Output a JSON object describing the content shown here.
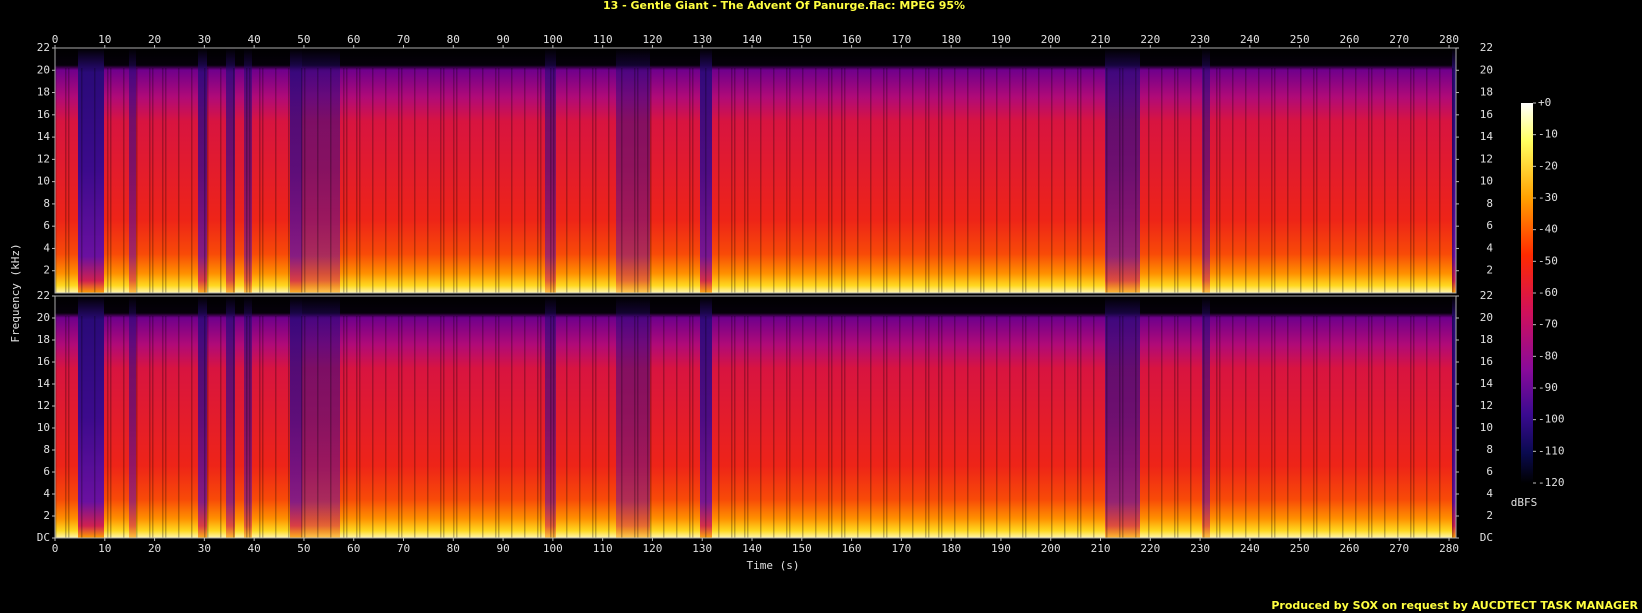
{
  "chart_data": {
    "type": "spectrogram",
    "title": "13 - Gentle Giant - The Advent Of Panurge.flac: MPEG 95%",
    "xlabel": "Time (s)",
    "ylabel": "Frequency (kHz)",
    "xlim": [
      0,
      281.4
    ],
    "xticks": [
      0,
      10,
      20,
      30,
      40,
      50,
      60,
      70,
      80,
      90,
      100,
      110,
      120,
      130,
      140,
      150,
      160,
      170,
      180,
      190,
      200,
      210,
      220,
      230,
      240,
      250,
      260,
      270,
      280
    ],
    "ylim": [
      0,
      22
    ],
    "yticks": [
      {
        "value": 0,
        "label": "DC"
      },
      2,
      4,
      6,
      8,
      10,
      12,
      14,
      16,
      18,
      20,
      22
    ],
    "colorbar": {
      "label": "dBFS",
      "lim": [
        -120,
        0
      ],
      "ticks": [
        {
          "value": 0,
          "label": "+0"
        },
        -10,
        -20,
        -30,
        -40,
        -50,
        -60,
        -70,
        -80,
        -90,
        -100,
        -110,
        -120
      ]
    },
    "footer": "Produced by SOX on request by AUCDTECT TASK MANAGER"
  }
}
